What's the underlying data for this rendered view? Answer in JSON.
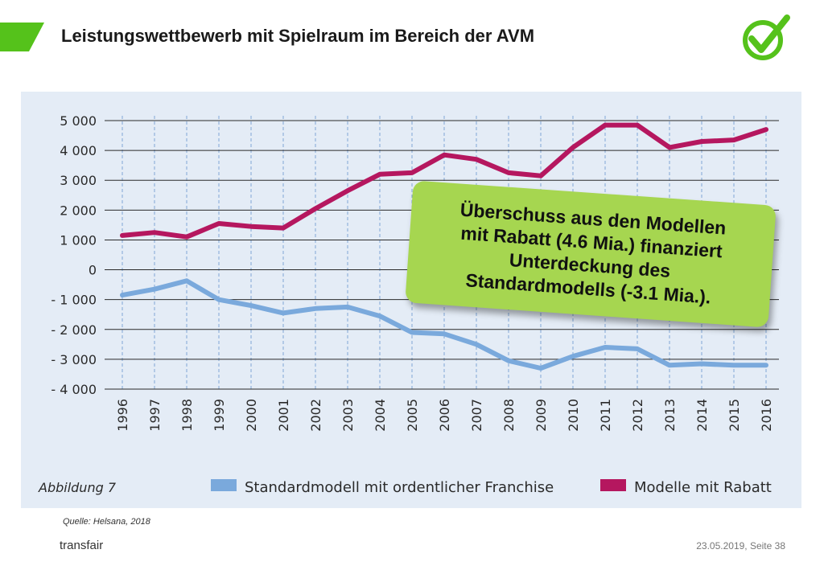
{
  "header": {
    "title": "Leistungswettbewerb mit Spielraum im Bereich der AVM",
    "accent_color": "#55c21b",
    "logo_icon": "checkmark-circle-icon"
  },
  "chart_data": {
    "type": "line",
    "title": "",
    "xlabel": "",
    "ylabel": "",
    "ylim": [
      -4000,
      5000
    ],
    "y_ticks": [
      5000,
      4000,
      3000,
      2000,
      1000,
      0,
      -1000,
      -2000,
      -3000,
      -4000
    ],
    "y_tick_labels": [
      "5 000",
      "4 000",
      "3 000",
      "2 000",
      "1 000",
      "0",
      "- 1 000",
      "- 2 000",
      "- 3 000",
      "- 4 000"
    ],
    "categories": [
      "1996",
      "1997",
      "1998",
      "1999",
      "2000",
      "2001",
      "2002",
      "2003",
      "2004",
      "2005",
      "2006",
      "2007",
      "2008",
      "2009",
      "2010",
      "2011",
      "2012",
      "2013",
      "2014",
      "2015",
      "2016"
    ],
    "series": [
      {
        "name": "Standardmodell mit ordentlicher Franchise",
        "color": "#7aa9dc",
        "values": [
          -850,
          -650,
          -370,
          -1000,
          -1200,
          -1450,
          -1300,
          -1250,
          -1550,
          -2100,
          -2150,
          -2500,
          -3050,
          -3300,
          -2900,
          -2600,
          -2650,
          -3200,
          -3150,
          -3200,
          -3200
        ]
      },
      {
        "name": "Modelle mit Rabatt",
        "color": "#b5175f",
        "values": [
          1150,
          1250,
          1100,
          1550,
          1450,
          1400,
          2050,
          2650,
          3200,
          3250,
          3850,
          3700,
          3250,
          3150,
          4100,
          4850,
          4850,
          4100,
          4300,
          4350,
          4700
        ]
      }
    ],
    "grid": true,
    "legend_position": "bottom",
    "figure_label": "Abbildung 7",
    "annotation": "Überschuss aus den Modellen\nmit Rabatt (4.6 Mia.) finanziert\nUnterdeckung des\nStandardmodells (-3.1 Mia.)."
  },
  "footer": {
    "source": "Quelle: Helsana, 2018",
    "brand": "transfair",
    "date_page": "23.05.2019, Seite 38"
  }
}
